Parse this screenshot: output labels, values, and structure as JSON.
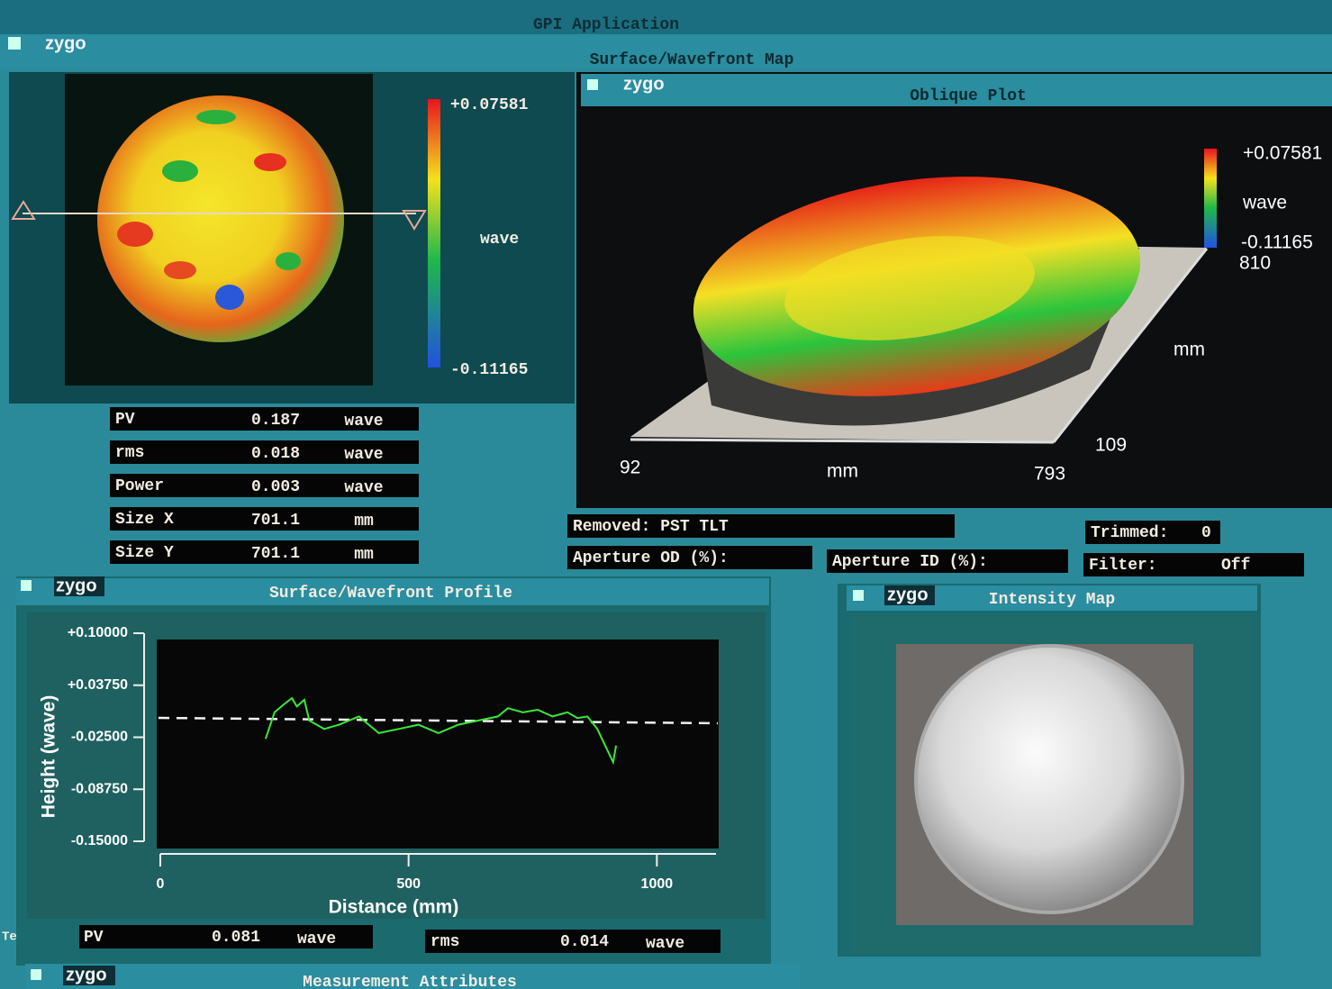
{
  "app": {
    "title": "GPI Application",
    "side_text": "Te"
  },
  "map_window": {
    "logo": "zygo",
    "title": "Surface/Wavefront Map"
  },
  "map": {
    "colorbar_max": "+0.07581",
    "colorbar_unit": "wave",
    "colorbar_min": "-0.11165"
  },
  "stats": {
    "rows": [
      [
        "PV",
        "0.187",
        "wave"
      ],
      [
        "rms",
        "0.018",
        "wave"
      ],
      [
        "Power",
        "0.003",
        "wave"
      ],
      [
        "Size X",
        "701.1",
        "mm"
      ],
      [
        "Size Y",
        "701.1",
        "mm"
      ]
    ]
  },
  "oblique": {
    "logo": "zygo",
    "title": "Oblique Plot",
    "colorbar_max": "+0.07581",
    "colorbar_unit": "wave",
    "colorbar_min": "-0.11165",
    "y_far": "810",
    "y_unit": "mm",
    "y_near": "109",
    "x_start": "92",
    "x_unit": "mm",
    "x_end": "793"
  },
  "info": {
    "removed": "Removed: PST TLT",
    "aperture_od": "Aperture OD (%):",
    "aperture_id": "Aperture ID (%):",
    "trimmed_label": "Trimmed:",
    "trimmed_value": "0",
    "filter_label": "Filter:",
    "filter_value": "Off"
  },
  "profile": {
    "logo": "zygo",
    "title": "Surface/Wavefront Profile",
    "ylabel": "Height (wave)",
    "xlabel": "Distance (mm)",
    "ylim": [
      -0.15,
      0.1
    ],
    "yticks": [
      {
        "value": 0.1,
        "label": "+0.10000"
      },
      {
        "value": 0.0375,
        "label": "+0.03750"
      },
      {
        "value": -0.025,
        "label": "-0.02500"
      },
      {
        "value": -0.0875,
        "label": "-0.08750"
      },
      {
        "value": -0.15,
        "label": "-0.15000"
      }
    ],
    "xlim": [
      0,
      1110
    ],
    "xticks": [
      0,
      500,
      1000
    ],
    "color": "#39e83a",
    "x": [
      212,
      230,
      250,
      265,
      275,
      290,
      300,
      330,
      360,
      400,
      440,
      480,
      520,
      560,
      600,
      640,
      680,
      700,
      730,
      760,
      790,
      820,
      840,
      860,
      880,
      900,
      912,
      918
    ],
    "values": [
      -0.027,
      0.005,
      0.015,
      0.022,
      0.012,
      0.02,
      -0.005,
      -0.015,
      -0.01,
      0.0,
      -0.02,
      -0.015,
      -0.01,
      -0.02,
      -0.01,
      -0.005,
      0.0,
      0.01,
      0.005,
      0.008,
      0.0,
      0.005,
      -0.002,
      0.0,
      -0.015,
      -0.04,
      -0.055,
      -0.035
    ],
    "pv": [
      "PV",
      "0.081",
      "wave"
    ],
    "rms": [
      "rms",
      "0.014",
      "wave"
    ]
  },
  "intensity": {
    "logo": "zygo",
    "title": "Intensity Map"
  },
  "attributes": {
    "logo": "zygo",
    "title": "Measurement Attributes"
  }
}
